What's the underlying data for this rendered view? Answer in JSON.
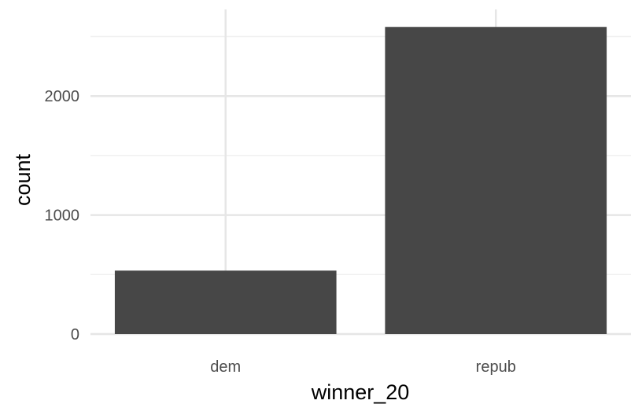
{
  "chart_data": {
    "type": "bar",
    "categories": [
      "dem",
      "repub"
    ],
    "values": [
      533,
      2581
    ],
    "title": "",
    "xlabel": "winner_20",
    "ylabel": "count",
    "ylim": [
      0,
      2700
    ],
    "y_ticks": [
      0,
      1000,
      2000
    ],
    "y_tick_labels": [
      "0",
      "1000",
      "2000"
    ],
    "grid": true,
    "legend": "none",
    "colors": {
      "bar": "#474747",
      "grid_major": "#e6e6e6",
      "grid_minor": "#f0f0f0",
      "background": "#ffffff"
    }
  }
}
